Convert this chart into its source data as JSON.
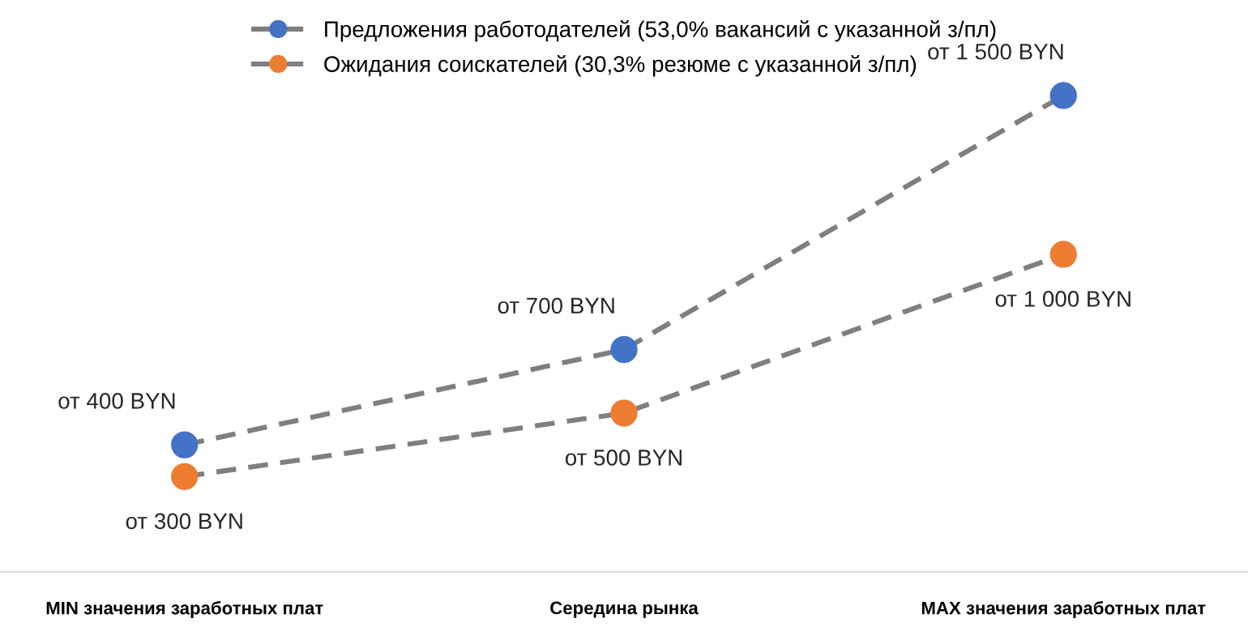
{
  "chart_data": {
    "type": "line",
    "categories": [
      "MIN значения заработных плат",
      "Середина рынка",
      "MAX значения заработных плат"
    ],
    "series": [
      {
        "name": "Предложения работодателей (53,0% вакансий с указанной з/пл)",
        "color": "#4472c4",
        "values": [
          400,
          700,
          1500
        ],
        "value_labels": [
          "от 400 BYN",
          "от 700 BYN",
          "от 1 500 BYN"
        ]
      },
      {
        "name": "Ожидания соискателей (30,3% резюме с указанной з/пл)",
        "color": "#ed7d31",
        "values": [
          300,
          500,
          1000
        ],
        "value_labels": [
          "от 300 BYN",
          "от 500 BYN",
          "от 1 000 BYN"
        ]
      }
    ],
    "marker": "circle",
    "line_style": "dashed",
    "legend": "top",
    "grid": false,
    "tick_labels": "x"
  }
}
